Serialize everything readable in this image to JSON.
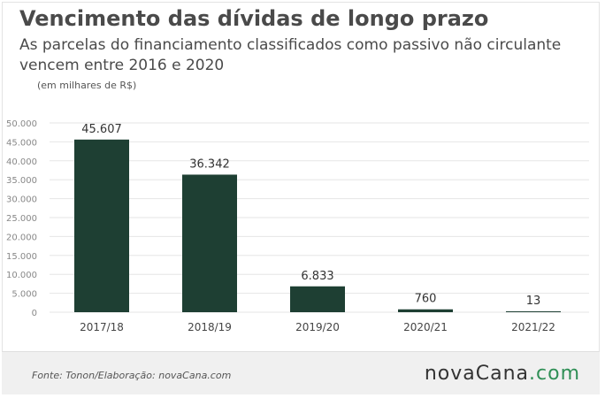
{
  "header": {
    "title": "Vencimento das dívidas de longo prazo",
    "subtitle": "As parcelas do financiamento classificados como passivo não circulante vencem entre 2016 e 2020",
    "unit": "(em milhares de R$)"
  },
  "footer": {
    "source": "Fonte: Tonon/Elaboração: novaCana.com",
    "logo_main": "novaCana",
    "logo_tld": ".com"
  },
  "colors": {
    "bar": "#1e3f33",
    "grid": "#e6e6e6",
    "logo_accent": "#2f8f56"
  },
  "chart_data": {
    "type": "bar",
    "title": "",
    "xlabel": "",
    "ylabel": "",
    "categories": [
      "2017/18",
      "2018/19",
      "2019/20",
      "2020/21",
      "2021/22"
    ],
    "values": [
      45607,
      36342,
      6833,
      760,
      13
    ],
    "value_labels": [
      "45.607",
      "36.342",
      "6.833",
      "760",
      "13"
    ],
    "yticks": [
      0,
      5000,
      10000,
      15000,
      20000,
      25000,
      30000,
      35000,
      40000,
      45000,
      50000
    ],
    "ytick_labels": [
      "0",
      "5.000",
      "10.000",
      "15.000",
      "20.000",
      "25.000",
      "30.000",
      "35.000",
      "40.000",
      "45.000",
      "50.000"
    ],
    "ylim": [
      0,
      50000
    ],
    "grid": true,
    "legend": "none"
  }
}
